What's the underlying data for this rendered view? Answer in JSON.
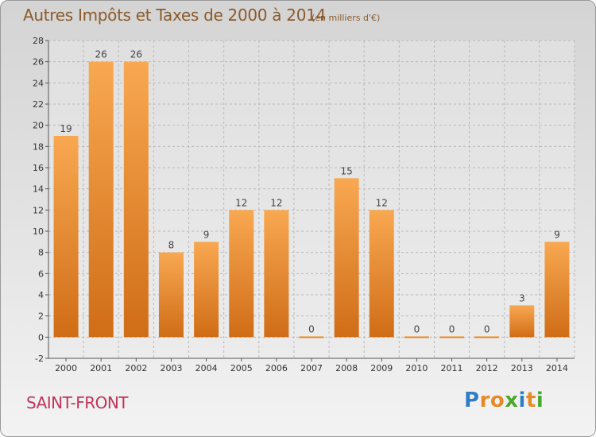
{
  "header": {
    "title": "Autres Impôts et Taxes de 2000 à 2014",
    "unit": "(en milliers d'€)"
  },
  "footer": {
    "place": "SAINT-FRONT",
    "logo": "Proxiti"
  },
  "colors": {
    "bar_light": "#f8a851",
    "bar_dark": "#d06d17",
    "grid": "#b9b9b9",
    "title": "#8b5a2b",
    "place": "#c0335a",
    "logo_letters": [
      "#2f7dc6",
      "#e6892a",
      "#e6892a",
      "#4aa82c",
      "#2f7dc6",
      "#e6892a",
      "#4aa82c"
    ]
  },
  "chart_data": {
    "type": "bar",
    "title": "Autres Impôts et Taxes de 2000 à 2014",
    "subtitle": "(en milliers d'€)",
    "xlabel": "",
    "ylabel": "",
    "categories": [
      "2000",
      "2001",
      "2002",
      "2003",
      "2004",
      "2005",
      "2006",
      "2007",
      "2008",
      "2009",
      "2010",
      "2011",
      "2012",
      "2013",
      "2014"
    ],
    "values": [
      19,
      26,
      26,
      8,
      9,
      12,
      12,
      0,
      15,
      12,
      0,
      0,
      0,
      3,
      9
    ],
    "data_labels": [
      "19",
      "26",
      "26",
      "8",
      "9",
      "12",
      "12",
      "0",
      "15",
      "12",
      "0",
      "0",
      "0",
      "3",
      "9"
    ],
    "ylim": [
      -2,
      28
    ],
    "yticks": [
      -2,
      0,
      2,
      4,
      6,
      8,
      10,
      12,
      14,
      16,
      18,
      20,
      22,
      24,
      26,
      28
    ],
    "grid": true,
    "legend": "none"
  }
}
